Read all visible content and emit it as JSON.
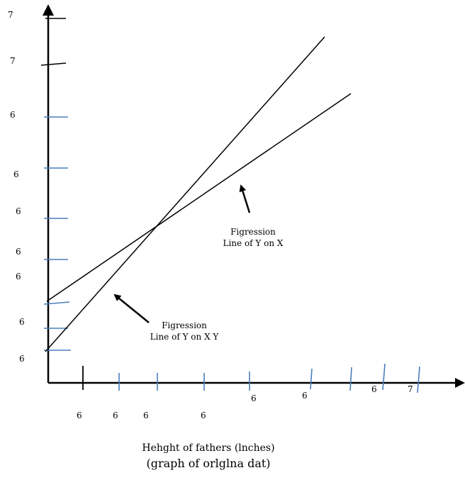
{
  "y_tick_labels": [
    "7",
    "7",
    "6",
    "6",
    "6",
    "6",
    "6",
    "6",
    "6"
  ],
  "x_tick_labels": [
    "6",
    "6",
    "6",
    "6",
    "6",
    "6",
    "6",
    "7"
  ],
  "line_labels": {
    "upper": {
      "line1": "Figression",
      "line2": "Line of Y on X"
    },
    "lower": {
      "line1": "Figression",
      "line2": "Line of Y on X Y"
    }
  },
  "x_title": "Hehght of fathers (lnches)",
  "caption": "(graph of orlglna dat)",
  "colors": {
    "axis": "#000000",
    "tick": "#4a7ebb",
    "line": "#000000"
  }
}
